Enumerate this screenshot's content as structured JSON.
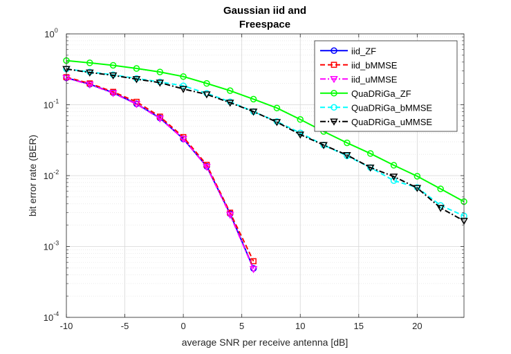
{
  "chart_data": {
    "type": "line",
    "title_lines": [
      "Gaussian iid and",
      "Freespace"
    ],
    "xlabel": "average SNR per receive antenna [dB]",
    "ylabel": "bit error rate (BER)",
    "xlim": [
      -10,
      24
    ],
    "ylim": [
      0.0001,
      1
    ],
    "yscale": "log",
    "grid": true,
    "minor_grid": true,
    "legend_position": "top-right",
    "x_ticks": [
      -10,
      -5,
      0,
      5,
      10,
      15,
      20
    ],
    "x_tick_labels": [
      "-10",
      "-5",
      "0",
      "5",
      "10",
      "15",
      "20"
    ],
    "y_ticks": [
      0.0001,
      0.001,
      0.01,
      0.1,
      1
    ],
    "y_tick_labels": [
      {
        "base": "10",
        "exp": "-4"
      },
      {
        "base": "10",
        "exp": "-3"
      },
      {
        "base": "10",
        "exp": "-2"
      },
      {
        "base": "10",
        "exp": "-1"
      },
      {
        "base": "10",
        "exp": "0"
      }
    ],
    "series": [
      {
        "name": "iid_ZF",
        "color": "#0000ff",
        "dash": "solid",
        "marker": "circle",
        "x": [
          -10,
          -8,
          -6,
          -4,
          -2,
          0,
          2,
          4,
          6
        ],
        "y": [
          0.24,
          0.195,
          0.148,
          0.103,
          0.065,
          0.033,
          0.0135,
          0.0029,
          0.00049
        ]
      },
      {
        "name": "iid_bMMSE",
        "color": "#ff0000",
        "dash": "dash",
        "marker": "square",
        "x": [
          -10,
          -8,
          -6,
          -4,
          -2,
          0,
          2,
          4,
          6
        ],
        "y": [
          0.245,
          0.2,
          0.152,
          0.11,
          0.068,
          0.035,
          0.0142,
          0.003,
          0.00062
        ]
      },
      {
        "name": "iid_uMMSE",
        "color": "#ff00ff",
        "dash": "dashdot",
        "marker": "triangle-down",
        "x": [
          -10,
          -8,
          -6,
          -4,
          -2,
          0,
          2,
          4,
          6
        ],
        "y": [
          0.238,
          0.193,
          0.146,
          0.102,
          0.064,
          0.033,
          0.0133,
          0.0028,
          0.00048
        ]
      },
      {
        "name": "QuaDRiGa_ZF",
        "color": "#00ff00",
        "dash": "solid",
        "marker": "circle",
        "x": [
          -10,
          -8,
          -6,
          -4,
          -2,
          0,
          2,
          4,
          6,
          8,
          10,
          12,
          14,
          16,
          18,
          20,
          22,
          24
        ],
        "y": [
          0.42,
          0.39,
          0.36,
          0.325,
          0.29,
          0.25,
          0.2,
          0.158,
          0.12,
          0.09,
          0.062,
          0.042,
          0.029,
          0.0205,
          0.014,
          0.0098,
          0.0065,
          0.0043
        ]
      },
      {
        "name": "QuaDRiGa_bMMSE",
        "color": "#00ffff",
        "dash": "dash",
        "marker": "circle",
        "x": [
          -10,
          -8,
          -6,
          -4,
          -2,
          0,
          2,
          4,
          6,
          8,
          10,
          12,
          14,
          16,
          18,
          20,
          22,
          24
        ],
        "y": [
          0.32,
          0.29,
          0.265,
          0.235,
          0.21,
          0.185,
          0.145,
          0.11,
          0.08,
          0.058,
          0.04,
          0.027,
          0.019,
          0.013,
          0.0085,
          0.0068,
          0.0038,
          0.0027
        ]
      },
      {
        "name": "QuaDRiGa_uMMSE",
        "color": "#000000",
        "dash": "dashdot",
        "marker": "triangle-down",
        "x": [
          -10,
          -8,
          -6,
          -4,
          -2,
          0,
          2,
          4,
          6,
          8,
          10,
          12,
          14,
          16,
          18,
          20,
          22,
          24
        ],
        "y": [
          0.32,
          0.285,
          0.26,
          0.23,
          0.205,
          0.167,
          0.14,
          0.107,
          0.08,
          0.057,
          0.038,
          0.027,
          0.0195,
          0.013,
          0.0097,
          0.0067,
          0.0035,
          0.0023
        ]
      }
    ]
  }
}
